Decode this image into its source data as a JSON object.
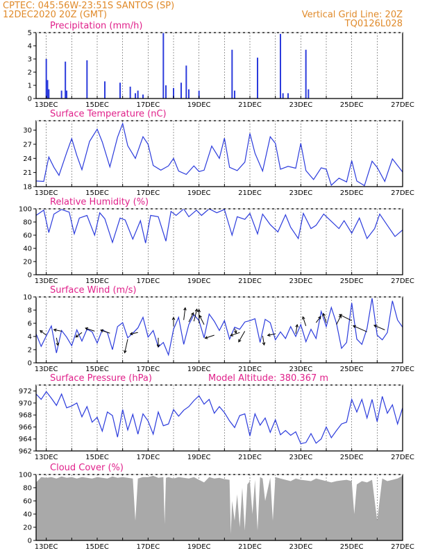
{
  "header": {
    "left_line1": "CPTEC:  045:56W-23:51S  SANTOS (SP)",
    "left_line2": "12DEC2020 20Z (GMT)",
    "right_line1": "Vertical Grid Line: 20Z",
    "right_line2": "TQ0126L028"
  },
  "colors": {
    "header": "#e08a2a",
    "title": "#e0208a",
    "series": "#2b3bdc",
    "cloud": "#a9a9a9",
    "axis": "#000000"
  },
  "x_ticks": [
    "13DEC",
    "15DEC",
    "17DEC",
    "19DEC",
    "21DEC",
    "23DEC",
    "25DEC",
    "27DEC"
  ],
  "chart_data": [
    {
      "type": "bar",
      "title": "Precipitation (mm/h)",
      "ylim": [
        0,
        5
      ],
      "yticks": [
        0,
        1,
        2,
        3,
        4,
        5
      ],
      "x_range_days": [
        12.6,
        27.0
      ],
      "bars": [
        [
          13.0,
          3.0
        ],
        [
          13.05,
          1.4
        ],
        [
          13.1,
          0.7
        ],
        [
          13.6,
          0.6
        ],
        [
          13.75,
          2.8
        ],
        [
          13.8,
          0.6
        ],
        [
          14.6,
          2.9
        ],
        [
          15.3,
          1.3
        ],
        [
          15.9,
          1.2
        ],
        [
          16.3,
          0.9
        ],
        [
          16.5,
          0.4
        ],
        [
          16.6,
          0.6
        ],
        [
          16.8,
          0.3
        ],
        [
          17.6,
          5.0
        ],
        [
          17.7,
          1.0
        ],
        [
          18.0,
          0.8
        ],
        [
          18.3,
          1.2
        ],
        [
          18.5,
          2.5
        ],
        [
          18.6,
          0.7
        ],
        [
          19.0,
          0.6
        ],
        [
          20.3,
          3.7
        ],
        [
          20.4,
          0.6
        ],
        [
          21.3,
          3.1
        ],
        [
          22.2,
          4.9
        ],
        [
          22.3,
          0.4
        ],
        [
          22.5,
          0.4
        ],
        [
          23.2,
          3.7
        ],
        [
          23.3,
          0.7
        ]
      ],
      "grid_vertical": true
    },
    {
      "type": "line",
      "title": "Surface Temperature (nC)",
      "ylim": [
        18,
        32
      ],
      "yticks": [
        18,
        21,
        24,
        27,
        30
      ],
      "x": [
        12.6,
        12.9,
        13.1,
        13.3,
        13.5,
        13.8,
        14.0,
        14.2,
        14.4,
        14.7,
        15.0,
        15.2,
        15.5,
        15.8,
        16.0,
        16.2,
        16.5,
        16.8,
        17.0,
        17.2,
        17.5,
        17.8,
        18.0,
        18.2,
        18.5,
        18.8,
        19.0,
        19.2,
        19.5,
        19.8,
        20.0,
        20.2,
        20.5,
        20.8,
        21.0,
        21.2,
        21.5,
        21.8,
        22.0,
        22.2,
        22.5,
        22.8,
        23.0,
        23.2,
        23.5,
        23.8,
        24.0,
        24.2,
        24.5,
        24.8,
        25.0,
        25.2,
        25.5,
        25.8,
        26.0,
        26.3,
        26.6,
        27.0
      ],
      "values": [
        19.2,
        19.1,
        24.3,
        22.1,
        20.4,
        25.2,
        28.2,
        24.6,
        21.6,
        27.6,
        30.2,
        27.5,
        22.2,
        28.5,
        31.4,
        26.7,
        24.0,
        28.6,
        27.0,
        22.5,
        21.5,
        22.4,
        24.0,
        21.3,
        20.6,
        22.4,
        21.2,
        21.5,
        26.6,
        24.0,
        28.3,
        22.1,
        21.4,
        23.2,
        29.3,
        25.1,
        21.3,
        28.6,
        27.2,
        21.7,
        22.3,
        21.9,
        27.2,
        21.4,
        19.5,
        22.0,
        21.7,
        18.3,
        19.8,
        19.0,
        23.5,
        19.2,
        18.2,
        23.4,
        22.1,
        19.1,
        23.9,
        21.1
      ],
      "grid_vertical": true
    },
    {
      "type": "line",
      "title": "Relative Humidity (%)",
      "ylim": [
        0,
        100
      ],
      "yticks": [
        0,
        20,
        40,
        60,
        80,
        100
      ],
      "x": [
        12.6,
        12.9,
        13.1,
        13.3,
        13.6,
        13.9,
        14.1,
        14.3,
        14.6,
        14.9,
        15.1,
        15.3,
        15.6,
        15.9,
        16.1,
        16.4,
        16.7,
        16.9,
        17.1,
        17.4,
        17.7,
        17.9,
        18.1,
        18.4,
        18.6,
        18.9,
        19.1,
        19.4,
        19.7,
        20.0,
        20.3,
        20.5,
        20.8,
        21.0,
        21.3,
        21.5,
        21.8,
        22.1,
        22.4,
        22.6,
        22.9,
        23.1,
        23.4,
        23.6,
        23.9,
        24.2,
        24.5,
        24.7,
        25.0,
        25.3,
        25.6,
        25.9,
        26.1,
        26.4,
        26.7,
        27.0
      ],
      "values": [
        90,
        98,
        64,
        92,
        99,
        95,
        62,
        86,
        90,
        60,
        94,
        85,
        49,
        86,
        83,
        54,
        82,
        48,
        90,
        88,
        51,
        96,
        90,
        100,
        88,
        98,
        90,
        100,
        94,
        99,
        60,
        88,
        84,
        93,
        62,
        92,
        76,
        65,
        91,
        72,
        55,
        93,
        70,
        75,
        92,
        81,
        70,
        82,
        63,
        86,
        55,
        70,
        92,
        75,
        58,
        68
      ],
      "grid_vertical": true
    },
    {
      "type": "line",
      "title": "Surface Wind (m/s)",
      "ylim": [
        0,
        10
      ],
      "yticks": [
        0,
        2,
        4,
        6,
        8,
        10
      ],
      "x": [
        12.6,
        12.8,
        13.0,
        13.2,
        13.4,
        13.6,
        13.8,
        14.0,
        14.2,
        14.4,
        14.6,
        14.8,
        15.0,
        15.2,
        15.4,
        15.6,
        15.8,
        16.0,
        16.2,
        16.4,
        16.6,
        16.8,
        17.0,
        17.2,
        17.4,
        17.6,
        17.8,
        18.0,
        18.2,
        18.4,
        18.6,
        18.8,
        19.0,
        19.2,
        19.4,
        19.6,
        19.8,
        20.0,
        20.2,
        20.4,
        20.6,
        20.8,
        21.0,
        21.2,
        21.4,
        21.6,
        21.8,
        22.0,
        22.2,
        22.4,
        22.6,
        22.8,
        23.0,
        23.2,
        23.4,
        23.6,
        23.8,
        24.0,
        24.2,
        24.4,
        24.6,
        24.8,
        25.0,
        25.2,
        25.4,
        25.6,
        25.8,
        26.0,
        26.2,
        26.4,
        26.6,
        26.8,
        27.0
      ],
      "values": [
        4.4,
        2.5,
        4.1,
        5.6,
        1.5,
        4.9,
        3.9,
        2.6,
        5.0,
        3.3,
        5.1,
        4.7,
        3.0,
        5.0,
        4.6,
        2.0,
        5.5,
        6.1,
        3.8,
        4.5,
        5.3,
        6.9,
        3.9,
        4.9,
        2.4,
        3.1,
        1.2,
        5.1,
        6.9,
        2.8,
        5.8,
        7.3,
        6.4,
        3.8,
        7.4,
        6.3,
        4.9,
        6.4,
        3.6,
        5.4,
        5.1,
        6.2,
        6.4,
        6.7,
        3.1,
        6.6,
        6.1,
        3.5,
        4.7,
        3.7,
        5.5,
        4.0,
        5.8,
        3.2,
        5.1,
        3.7,
        7.8,
        5.5,
        8.4,
        6.0,
        2.2,
        3.1,
        9.1,
        3.6,
        2.8,
        5.2,
        9.8,
        4.2,
        3.5,
        4.6,
        9.4,
        6.5,
        5.4
      ],
      "wind_vectors": [
        [
          13.0,
          4.2,
          -0.4,
          0.3
        ],
        [
          13.4,
          3.8,
          0.1,
          -0.5
        ],
        [
          13.6,
          4.8,
          -0.5,
          0.1
        ],
        [
          14.4,
          4.6,
          -0.4,
          -0.3
        ],
        [
          14.9,
          4.8,
          -0.6,
          0.2
        ],
        [
          15.5,
          4.5,
          -0.6,
          0.2
        ],
        [
          16.2,
          3.6,
          -0.2,
          -0.9
        ],
        [
          16.6,
          4.6,
          -0.5,
          -0.1
        ],
        [
          17.4,
          3.8,
          0.0,
          -0.6
        ],
        [
          18.0,
          5.5,
          0.0,
          0.6
        ],
        [
          18.4,
          6.5,
          0.1,
          0.8
        ],
        [
          18.6,
          6.2,
          0.3,
          0.6
        ],
        [
          18.8,
          6.3,
          0.2,
          0.8
        ],
        [
          19.0,
          6.0,
          0.0,
          0.9
        ],
        [
          19.2,
          5.8,
          -0.3,
          0.6
        ],
        [
          19.6,
          4.2,
          -0.6,
          -0.2
        ],
        [
          20.4,
          5.2,
          0.1,
          -0.3
        ],
        [
          20.6,
          4.6,
          -0.6,
          -0.2
        ],
        [
          20.8,
          4.8,
          -0.4,
          -0.7
        ],
        [
          21.5,
          4.1,
          0.1,
          -0.6
        ],
        [
          22.0,
          4.4,
          -0.5,
          -0.1
        ],
        [
          22.8,
          4.4,
          0.1,
          0.6
        ],
        [
          23.2,
          5.6,
          -0.2,
          0.6
        ],
        [
          23.6,
          6.1,
          0.3,
          0.4
        ],
        [
          24.0,
          6.1,
          -0.2,
          0.6
        ],
        [
          24.4,
          5.8,
          0.3,
          0.6
        ],
        [
          25.0,
          6.4,
          -0.8,
          0.4
        ],
        [
          25.6,
          4.7,
          -0.9,
          0.4
        ],
        [
          26.3,
          5.0,
          -0.7,
          0.3
        ]
      ],
      "grid_vertical": true
    },
    {
      "type": "line",
      "title": "Surface Pressure (hPa)",
      "annotation": "Model Altitude: 380.367 m",
      "ylim": [
        962,
        973
      ],
      "yticks": [
        962,
        964,
        966,
        968,
        970,
        972
      ],
      "x": [
        12.6,
        12.8,
        13.0,
        13.2,
        13.4,
        13.6,
        13.8,
        14.0,
        14.2,
        14.4,
        14.6,
        14.8,
        15.0,
        15.2,
        15.4,
        15.6,
        15.8,
        16.0,
        16.2,
        16.4,
        16.6,
        16.8,
        17.0,
        17.2,
        17.4,
        17.6,
        17.8,
        18.0,
        18.2,
        18.4,
        18.6,
        18.8,
        19.0,
        19.2,
        19.4,
        19.6,
        19.8,
        20.0,
        20.2,
        20.4,
        20.6,
        20.8,
        21.0,
        21.2,
        21.4,
        21.6,
        21.8,
        22.0,
        22.2,
        22.4,
        22.6,
        22.8,
        23.0,
        23.2,
        23.4,
        23.6,
        23.8,
        24.0,
        24.2,
        24.4,
        24.6,
        24.8,
        25.0,
        25.2,
        25.4,
        25.6,
        25.8,
        26.0,
        26.2,
        26.4,
        26.6,
        26.8,
        27.0
      ],
      "values": [
        971.5,
        970.6,
        971.9,
        970.8,
        969.6,
        971.5,
        969.2,
        969.5,
        970.0,
        967.7,
        969.4,
        966.8,
        967.6,
        965.3,
        968.5,
        967.9,
        964.3,
        968.9,
        965.5,
        968.1,
        964.8,
        968.2,
        967.0,
        964.8,
        968.5,
        966.2,
        966.5,
        968.9,
        967.8,
        968.8,
        969.4,
        970.4,
        971.2,
        969.8,
        970.6,
        968.3,
        969.4,
        968.4,
        967.0,
        965.9,
        967.9,
        968.2,
        964.5,
        968.2,
        966.3,
        967.5,
        965.1,
        967.2,
        964.7,
        965.4,
        964.6,
        965.2,
        963.2,
        963.4,
        964.9,
        963.3,
        964.0,
        966.0,
        964.2,
        965.4,
        966.5,
        966.8,
        970.6,
        968.5,
        970.6,
        967.5,
        970.6,
        966.9,
        971.1,
        968.3,
        969.7,
        966.5,
        969.2
      ],
      "grid_vertical": true
    },
    {
      "type": "area",
      "title": "Cloud Cover (%)",
      "ylim": [
        0,
        100
      ],
      "yticks": [
        0,
        20,
        40,
        60,
        80,
        100
      ],
      "x": [
        12.6,
        12.7,
        12.8,
        13.0,
        13.2,
        13.4,
        13.6,
        13.8,
        14.0,
        14.2,
        14.4,
        14.6,
        14.8,
        15.0,
        15.2,
        15.4,
        15.6,
        15.8,
        16.0,
        16.2,
        16.4,
        16.5,
        16.6,
        16.8,
        17.0,
        17.2,
        17.4,
        17.6,
        17.65,
        17.7,
        17.8,
        18.0,
        18.2,
        18.4,
        18.6,
        18.8,
        19.0,
        19.2,
        19.4,
        19.6,
        19.8,
        20.0,
        20.2,
        20.25,
        20.3,
        20.4,
        20.5,
        20.6,
        20.7,
        20.8,
        20.9,
        21.0,
        21.1,
        21.2,
        21.3,
        21.4,
        21.5,
        21.6,
        21.8,
        21.9,
        22.0,
        22.2,
        22.4,
        22.6,
        22.8,
        23.0,
        23.2,
        23.4,
        23.6,
        23.8,
        24.0,
        24.2,
        24.4,
        24.6,
        24.8,
        25.0,
        25.1,
        25.2,
        25.4,
        25.6,
        25.8,
        26.0,
        26.2,
        26.4,
        26.6,
        26.8,
        27.0
      ],
      "values": [
        88,
        92,
        96,
        95,
        96,
        94,
        97,
        95,
        96,
        94,
        96,
        95,
        94,
        96,
        95,
        94,
        97,
        95,
        96,
        95,
        94,
        30,
        94,
        96,
        96,
        98,
        95,
        96,
        25,
        95,
        96,
        94,
        96,
        95,
        94,
        96,
        92,
        88,
        96,
        94,
        95,
        93,
        92,
        10,
        60,
        30,
        70,
        20,
        80,
        15,
        85,
        90,
        40,
        92,
        15,
        96,
        94,
        60,
        95,
        30,
        96,
        94,
        92,
        90,
        94,
        92,
        91,
        90,
        94,
        92,
        90,
        88,
        90,
        91,
        92,
        90,
        40,
        85,
        90,
        88,
        92,
        30,
        94,
        90,
        92,
        94,
        98
      ],
      "grid_vertical": true
    }
  ]
}
